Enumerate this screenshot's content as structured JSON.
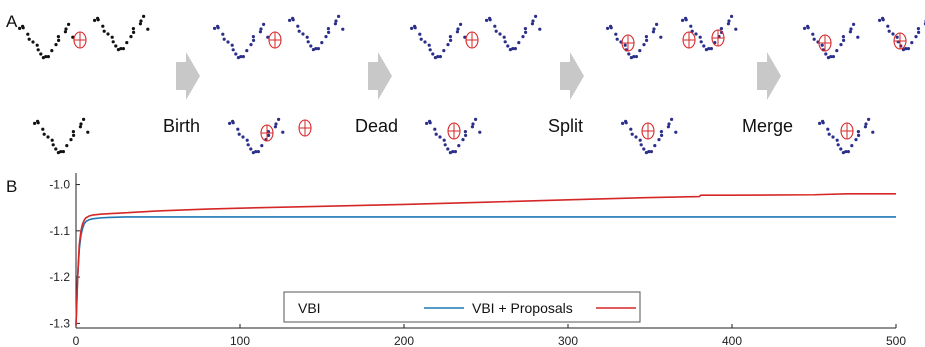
{
  "panel_a": {
    "label": "A",
    "steps": [
      {
        "label": "Birth"
      },
      {
        "label": "Dead"
      },
      {
        "label": "Split"
      },
      {
        "label": "Merge"
      }
    ],
    "colors": {
      "points_initial": "#111111",
      "points": "#2b2f8a",
      "ellipse": "#d62728",
      "arrow": "#c8c8c8"
    }
  },
  "chart_data": {
    "label": "B",
    "type": "line",
    "xlim": [
      0,
      500
    ],
    "ylim": [
      -1.31,
      -0.975
    ],
    "xticks": [
      0,
      100,
      200,
      300,
      400,
      500
    ],
    "yticks": [
      -1.0,
      -1.1,
      -1.2,
      -1.3
    ],
    "xtick_labels": [
      "0",
      "100",
      "200",
      "300",
      "400",
      "500"
    ],
    "ytick_labels": [
      "-1.0",
      "-1.1",
      "-1.2",
      "-1.3"
    ],
    "grid": false,
    "legend_position": "bottom-center",
    "series": [
      {
        "name": "VBI",
        "color": "#1f77b4",
        "x": [
          0,
          1,
          2,
          3,
          4,
          5,
          6,
          8,
          10,
          15,
          20,
          30,
          50,
          100,
          200,
          300,
          400,
          500
        ],
        "y": [
          -1.305,
          -1.2,
          -1.14,
          -1.11,
          -1.095,
          -1.085,
          -1.08,
          -1.076,
          -1.074,
          -1.072,
          -1.071,
          -1.07,
          -1.07,
          -1.07,
          -1.07,
          -1.07,
          -1.07,
          -1.07
        ]
      },
      {
        "name": "VBI + Proposals",
        "color": "#d62728",
        "x": [
          0,
          1,
          2,
          3,
          4,
          5,
          6,
          8,
          10,
          15,
          20,
          30,
          50,
          80,
          100,
          150,
          200,
          250,
          300,
          350,
          380,
          381,
          400,
          450,
          470,
          500
        ],
        "y": [
          -1.305,
          -1.2,
          -1.13,
          -1.1,
          -1.085,
          -1.077,
          -1.072,
          -1.068,
          -1.066,
          -1.064,
          -1.063,
          -1.061,
          -1.057,
          -1.053,
          -1.051,
          -1.047,
          -1.043,
          -1.038,
          -1.033,
          -1.028,
          -1.026,
          -1.023,
          -1.023,
          -1.022,
          -1.02,
          -1.02
        ]
      }
    ]
  }
}
